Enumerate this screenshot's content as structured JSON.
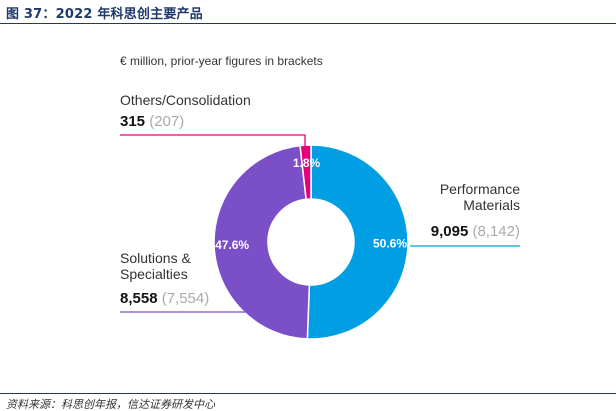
{
  "figure": {
    "title": "图 37：2022 年科思创主要产品",
    "source": "资料来源：科思创年报，信达证券研发中心"
  },
  "chart_data": {
    "type": "pie",
    "donut": true,
    "note": "€ million, prior-year figures in brackets",
    "slices": [
      {
        "key": "performance",
        "label_lines": [
          "Performance",
          "Materials"
        ],
        "value": "9,095",
        "prior": "(8,142)",
        "pct_value": 50.6,
        "pct_label": "50.6%",
        "color": "#009fe3"
      },
      {
        "key": "solutions",
        "label_lines": [
          "Solutions &",
          "Specialties"
        ],
        "value": "8,558",
        "prior": "(7,554)",
        "pct_value": 47.6,
        "pct_label": "47.6%",
        "color": "#7a4fc8"
      },
      {
        "key": "others",
        "label_lines": [
          "Others/Consolidation"
        ],
        "value": "315",
        "prior": "(207)",
        "pct_value": 1.8,
        "pct_label": "1.8%",
        "color": "#e6007e"
      }
    ]
  }
}
